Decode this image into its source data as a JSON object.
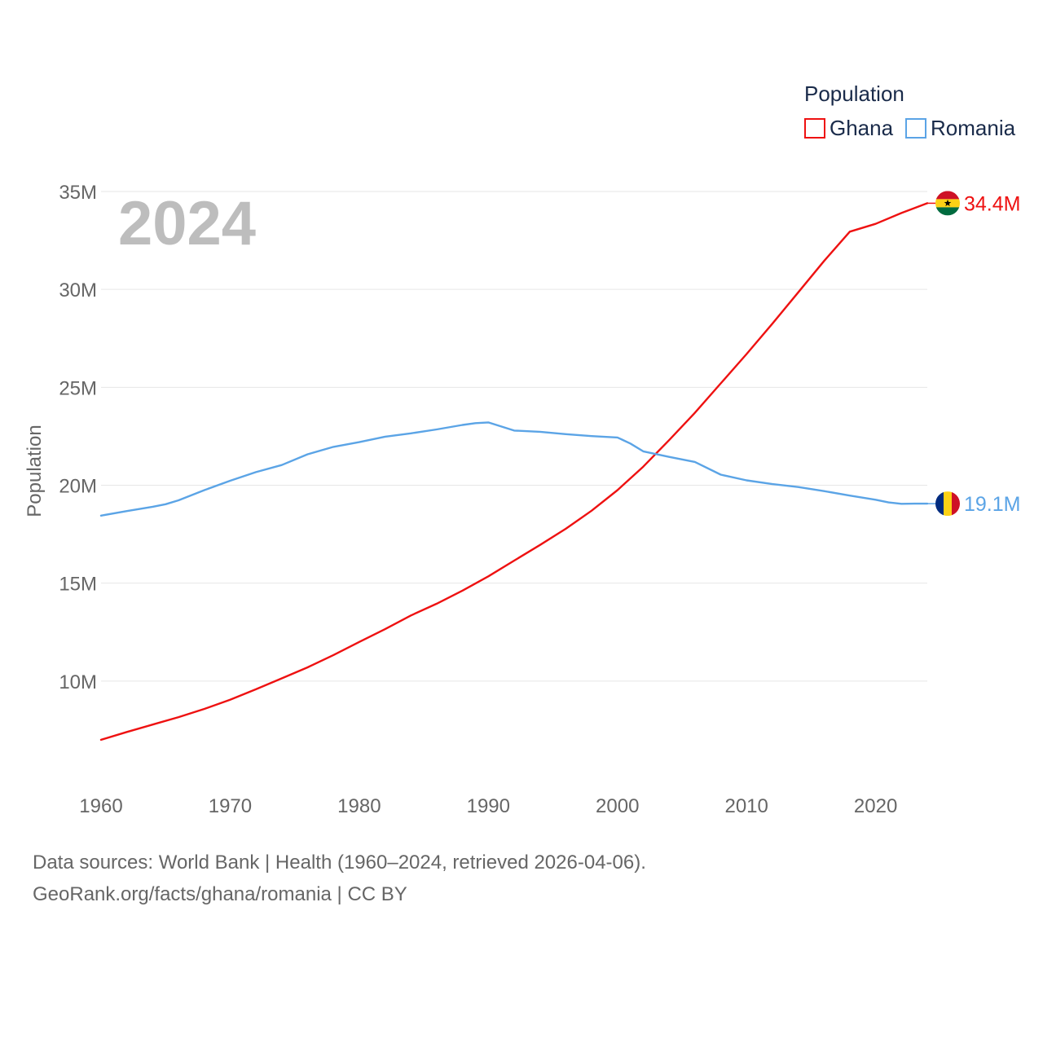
{
  "chart_data": {
    "type": "line",
    "title": "Population",
    "year_label": "2024",
    "ylabel": "Population",
    "xlabel": "",
    "xlim": [
      1960,
      2024
    ],
    "ylim": [
      5000000,
      35000000
    ],
    "yticks": [
      10000000,
      15000000,
      20000000,
      25000000,
      30000000,
      35000000
    ],
    "ytick_labels": [
      "10M",
      "15M",
      "20M",
      "25M",
      "30M",
      "35M"
    ],
    "xticks": [
      1960,
      1970,
      1980,
      1990,
      2000,
      2010,
      2020
    ],
    "xtick_labels": [
      "1960",
      "1970",
      "1980",
      "1990",
      "2000",
      "2010",
      "2020"
    ],
    "legend_position": "top-right",
    "grid": true,
    "series": [
      {
        "name": "Ghana",
        "color": "#ee1111",
        "end_label": "34.4M",
        "flag_colors": [
          "#ce1126",
          "#fcd116",
          "#006b3f"
        ],
        "points": [
          [
            1960,
            7000000
          ],
          [
            1962,
            7400000
          ],
          [
            1964,
            7780000
          ],
          [
            1966,
            8160000
          ],
          [
            1968,
            8580000
          ],
          [
            1970,
            9050000
          ],
          [
            1972,
            9580000
          ],
          [
            1974,
            10140000
          ],
          [
            1976,
            10700000
          ],
          [
            1978,
            11330000
          ],
          [
            1980,
            12000000
          ],
          [
            1982,
            12650000
          ],
          [
            1984,
            13350000
          ],
          [
            1986,
            13950000
          ],
          [
            1988,
            14620000
          ],
          [
            1990,
            15350000
          ],
          [
            1992,
            16150000
          ],
          [
            1994,
            16950000
          ],
          [
            1996,
            17780000
          ],
          [
            1998,
            18700000
          ],
          [
            2000,
            19750000
          ],
          [
            2002,
            20950000
          ],
          [
            2004,
            22300000
          ],
          [
            2006,
            23700000
          ],
          [
            2008,
            25200000
          ],
          [
            2010,
            26700000
          ],
          [
            2012,
            28250000
          ],
          [
            2014,
            29850000
          ],
          [
            2016,
            31450000
          ],
          [
            2018,
            32950000
          ],
          [
            2020,
            33350000
          ],
          [
            2022,
            33900000
          ],
          [
            2024,
            34400000
          ]
        ]
      },
      {
        "name": "Romania",
        "color": "#5ba4e6",
        "end_label": "19.1M",
        "flag_colors": [
          "#002b7f",
          "#fcd116",
          "#ce1126"
        ],
        "points": [
          [
            1960,
            18450000
          ],
          [
            1962,
            18680000
          ],
          [
            1964,
            18900000
          ],
          [
            1965,
            19030000
          ],
          [
            1966,
            19230000
          ],
          [
            1968,
            19750000
          ],
          [
            1970,
            20230000
          ],
          [
            1972,
            20670000
          ],
          [
            1974,
            21030000
          ],
          [
            1976,
            21580000
          ],
          [
            1978,
            21960000
          ],
          [
            1980,
            22200000
          ],
          [
            1982,
            22480000
          ],
          [
            1984,
            22650000
          ],
          [
            1986,
            22850000
          ],
          [
            1988,
            23080000
          ],
          [
            1989,
            23170000
          ],
          [
            1990,
            23210000
          ],
          [
            1992,
            22790000
          ],
          [
            1994,
            22730000
          ],
          [
            1996,
            22610000
          ],
          [
            1998,
            22510000
          ],
          [
            2000,
            22440000
          ],
          [
            2001,
            22130000
          ],
          [
            2002,
            21730000
          ],
          [
            2004,
            21450000
          ],
          [
            2006,
            21190000
          ],
          [
            2008,
            20540000
          ],
          [
            2010,
            20250000
          ],
          [
            2012,
            20060000
          ],
          [
            2014,
            19910000
          ],
          [
            2016,
            19700000
          ],
          [
            2018,
            19470000
          ],
          [
            2020,
            19260000
          ],
          [
            2021,
            19120000
          ],
          [
            2022,
            19050000
          ],
          [
            2023,
            19060000
          ],
          [
            2024,
            19060000
          ]
        ]
      }
    ]
  },
  "footer": {
    "line1": "Data sources: World Bank | Health (1960–2024, retrieved 2026-04-06).",
    "line2": "GeoRank.org/facts/ghana/romania | CC BY"
  }
}
